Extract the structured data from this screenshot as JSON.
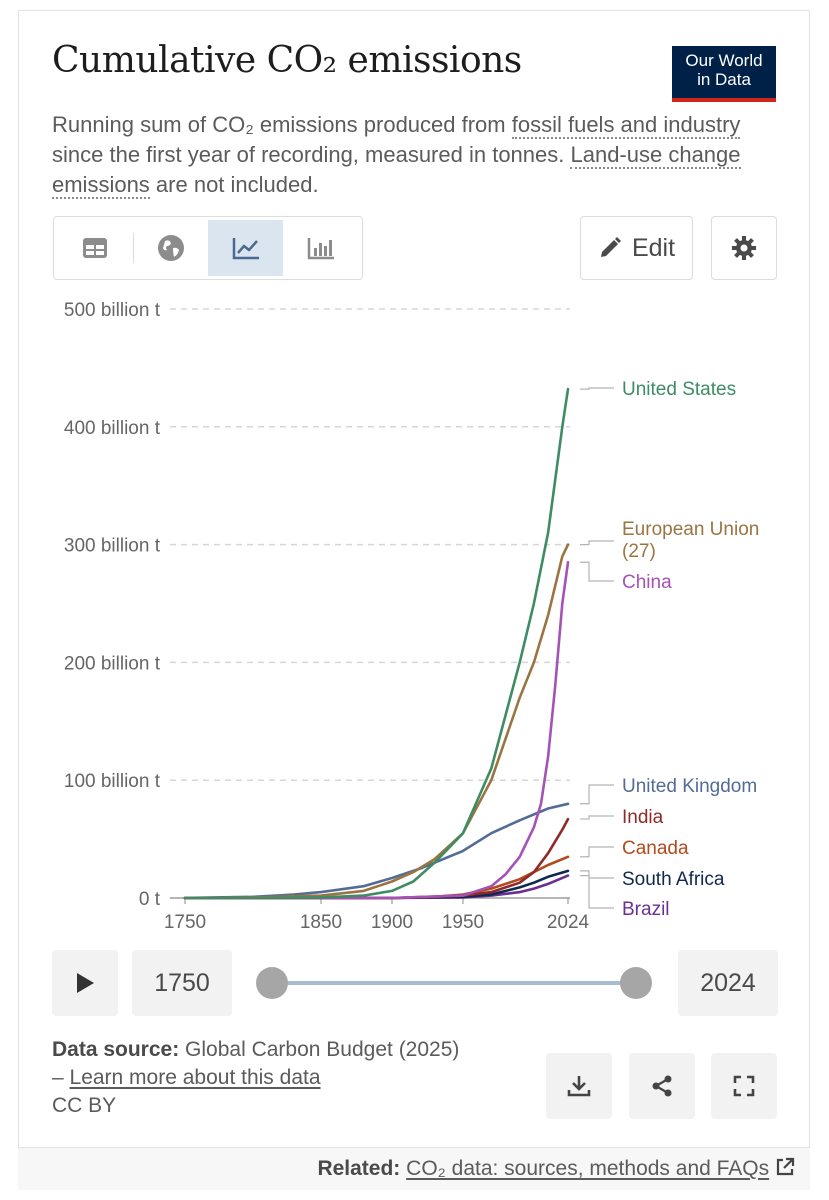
{
  "header": {
    "title": "Cumulative CO₂ emissions",
    "logo_line1": "Our World",
    "logo_line2": "in Data"
  },
  "subtitle": {
    "part1": "Running sum of CO₂ emissions produced from ",
    "link1": "fossil fuels and industry",
    "part2": " since the first year of recording, measured in tonnes. ",
    "link2": "Land-use change emissions",
    "part3": " are not included."
  },
  "toolbar": {
    "tabs": [
      "table",
      "map",
      "line-chart",
      "bar-chart"
    ],
    "active_tab": "line-chart",
    "edit_label": "Edit"
  },
  "colors": {
    "us": "#3e8b64",
    "eu": "#9a7542",
    "china": "#a552b6",
    "uk": "#536c97",
    "india": "#8f2a2a",
    "canada": "#b34a1d",
    "south_africa": "#102850",
    "brazil": "#6b2e91"
  },
  "chart_data": {
    "type": "line",
    "title": "Cumulative CO₂ emissions",
    "unit": "tonnes",
    "x_ticks": [
      "1750",
      "1850",
      "1900",
      "1950",
      "2024"
    ],
    "y_ticks": [
      "0 t",
      "100 billion t",
      "200 billion t",
      "300 billion t",
      "400 billion t",
      "500 billion t"
    ],
    "ylim": [
      0,
      500
    ],
    "xlim": [
      1750,
      2024
    ],
    "series": [
      {
        "key": "us",
        "name": "United States",
        "points": [
          [
            1800,
            0.1
          ],
          [
            1850,
            0.5
          ],
          [
            1880,
            2
          ],
          [
            1900,
            6
          ],
          [
            1915,
            14
          ],
          [
            1930,
            30
          ],
          [
            1950,
            55
          ],
          [
            1970,
            110
          ],
          [
            1990,
            200
          ],
          [
            2000,
            250
          ],
          [
            2010,
            310
          ],
          [
            2020,
            400
          ],
          [
            2024,
            432
          ]
        ]
      },
      {
        "key": "eu",
        "name": "European Union (27)",
        "points": [
          [
            1750,
            0
          ],
          [
            1800,
            0.5
          ],
          [
            1850,
            2
          ],
          [
            1880,
            6
          ],
          [
            1900,
            14
          ],
          [
            1915,
            22
          ],
          [
            1930,
            33
          ],
          [
            1950,
            55
          ],
          [
            1970,
            100
          ],
          [
            1990,
            170
          ],
          [
            2000,
            200
          ],
          [
            2010,
            240
          ],
          [
            2020,
            290
          ],
          [
            2024,
            300
          ]
        ]
      },
      {
        "key": "china",
        "name": "China",
        "points": [
          [
            1900,
            0.1
          ],
          [
            1950,
            2
          ],
          [
            1970,
            10
          ],
          [
            1980,
            20
          ],
          [
            1990,
            35
          ],
          [
            2000,
            60
          ],
          [
            2005,
            80
          ],
          [
            2010,
            120
          ],
          [
            2015,
            180
          ],
          [
            2020,
            250
          ],
          [
            2024,
            285
          ]
        ]
      },
      {
        "key": "uk",
        "name": "United Kingdom",
        "points": [
          [
            1750,
            0.1
          ],
          [
            1800,
            1
          ],
          [
            1830,
            3
          ],
          [
            1850,
            5
          ],
          [
            1880,
            10
          ],
          [
            1900,
            17
          ],
          [
            1920,
            25
          ],
          [
            1950,
            40
          ],
          [
            1970,
            55
          ],
          [
            1990,
            66
          ],
          [
            2010,
            76
          ],
          [
            2024,
            80
          ]
        ]
      },
      {
        "key": "india",
        "name": "India",
        "points": [
          [
            1900,
            0
          ],
          [
            1950,
            2
          ],
          [
            1970,
            5
          ],
          [
            1990,
            13
          ],
          [
            2000,
            22
          ],
          [
            2010,
            38
          ],
          [
            2020,
            58
          ],
          [
            2024,
            67
          ]
        ]
      },
      {
        "key": "canada",
        "name": "Canada",
        "points": [
          [
            1900,
            0
          ],
          [
            1930,
            1
          ],
          [
            1950,
            3
          ],
          [
            1970,
            8
          ],
          [
            1990,
            16
          ],
          [
            2000,
            22
          ],
          [
            2010,
            28
          ],
          [
            2024,
            35
          ]
        ]
      },
      {
        "key": "south_africa",
        "name": "South Africa",
        "points": [
          [
            1900,
            0
          ],
          [
            1950,
            1
          ],
          [
            1970,
            3
          ],
          [
            1990,
            9
          ],
          [
            2000,
            13
          ],
          [
            2010,
            18
          ],
          [
            2024,
            23
          ]
        ]
      },
      {
        "key": "brazil",
        "name": "Brazil",
        "points": [
          [
            1900,
            0
          ],
          [
            1950,
            0.5
          ],
          [
            1970,
            2
          ],
          [
            1990,
            5
          ],
          [
            2000,
            8
          ],
          [
            2010,
            12
          ],
          [
            2024,
            19
          ]
        ]
      }
    ],
    "labels": [
      {
        "key": "us",
        "lines": [
          "United States"
        ]
      },
      {
        "key": "eu",
        "lines": [
          "European Union",
          "(27)"
        ]
      },
      {
        "key": "china",
        "lines": [
          "China"
        ]
      },
      {
        "key": "uk",
        "lines": [
          "United Kingdom"
        ]
      },
      {
        "key": "india",
        "lines": [
          "India"
        ]
      },
      {
        "key": "canada",
        "lines": [
          "Canada"
        ]
      },
      {
        "key": "south_africa",
        "lines": [
          "South Africa"
        ]
      },
      {
        "key": "brazil",
        "lines": [
          "Brazil"
        ]
      }
    ]
  },
  "timeline": {
    "start_year": "1750",
    "end_year": "2024"
  },
  "footer": {
    "source_label": "Data source:",
    "source_text": " Global Carbon Budget (2025)",
    "dash": "– ",
    "learn_more": "Learn more about this data",
    "license": "CC BY",
    "related_label": "Related:",
    "related_link": "CO₂ data: sources, methods and FAQs"
  }
}
